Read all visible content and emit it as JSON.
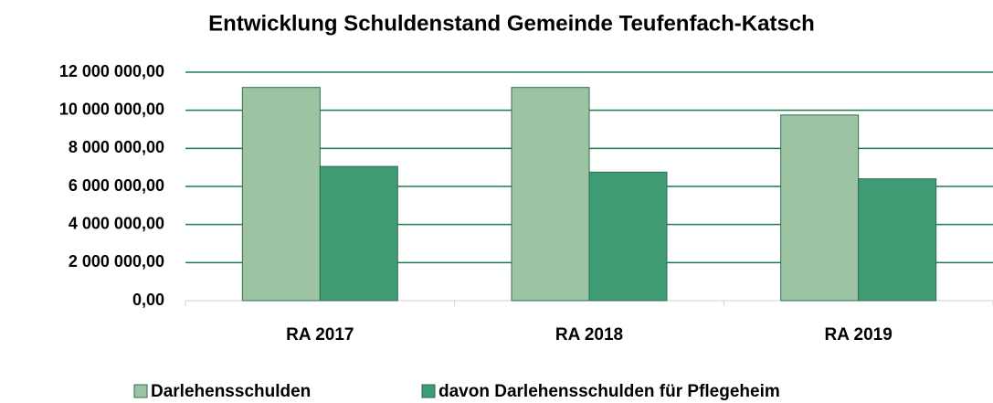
{
  "chart_data": {
    "type": "bar",
    "title": "Entwicklung Schuldenstand Gemeinde Teufenfach-Katsch",
    "categories": [
      "RA 2017",
      "RA 2018",
      "RA 2019"
    ],
    "series": [
      {
        "name": "Darlehensschulden",
        "color": "#9cc4a2",
        "values": [
          11200000,
          11200000,
          9750000
        ]
      },
      {
        "name": "davon Darlehensschulden für Pflegeheim",
        "color": "#3f9b73",
        "values": [
          7050000,
          6750000,
          6400000
        ]
      }
    ],
    "ylim": [
      0,
      12000000
    ],
    "yticks": [
      {
        "value": 0,
        "label": "0,00"
      },
      {
        "value": 2000000,
        "label": "2 000 000,00"
      },
      {
        "value": 4000000,
        "label": "4 000 000,00"
      },
      {
        "value": 6000000,
        "label": "6 000 000,00"
      },
      {
        "value": 8000000,
        "label": "8 000 000,00"
      },
      {
        "value": 10000000,
        "label": "10 000 000,00"
      },
      {
        "value": 12000000,
        "label": "12 000 000,00"
      }
    ],
    "grid": true,
    "legend": "bottom"
  }
}
